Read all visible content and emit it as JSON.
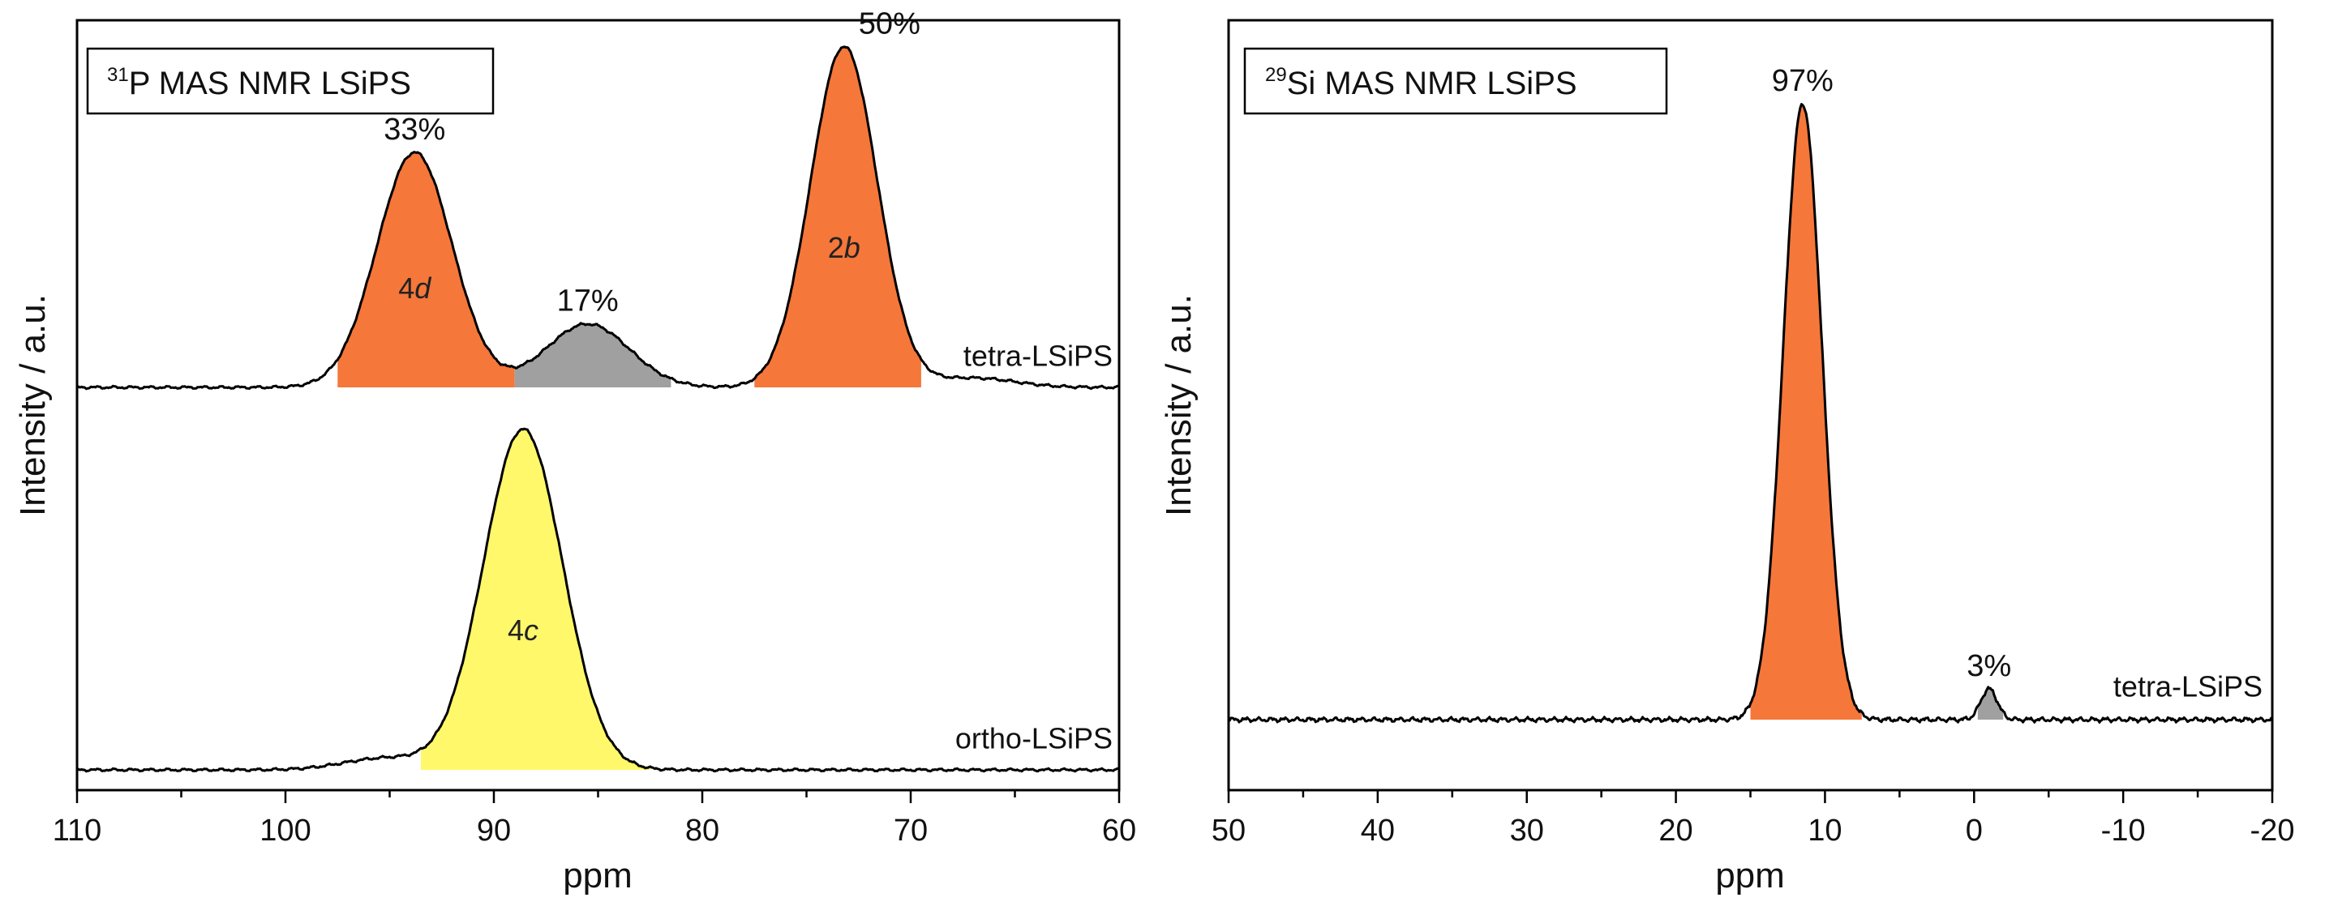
{
  "chart_data": [
    {
      "type": "line",
      "title_sup": "31",
      "title": "P MAS NMR LSiPS",
      "xlabel": "ppm",
      "ylabel": "Intensity / a.u.",
      "xlim": [
        110,
        60
      ],
      "x_reversed": true,
      "xticks": [
        110,
        100,
        90,
        80,
        70,
        60
      ],
      "tick_labels": [
        "110",
        "100",
        "90",
        "80",
        "70",
        "60"
      ],
      "series": [
        {
          "name": "tetra-LSiPS",
          "stack_level": "upper",
          "peaks": [
            {
              "center": 93.8,
              "height": 1.0,
              "width": 1.8,
              "fill": "#f5773a",
              "label": "4d",
              "label_num": "4",
              "label_it": "d",
              "percent": "33%",
              "fill_range": [
                97.5,
                89.0
              ]
            },
            {
              "center": 85.5,
              "height": 0.27,
              "width": 2.0,
              "fill": "#a0a0a0",
              "percent": "17%",
              "fill_range": [
                89.0,
                81.5
              ]
            },
            {
              "center": 73.2,
              "height": 1.45,
              "width": 1.6,
              "fill": "#f5773a",
              "label": "2b",
              "label_num": "2",
              "label_it": "b",
              "percent": "50%",
              "fill_range": [
                77.5,
                69.5
              ]
            },
            {
              "center": 67.0,
              "height": 0.04,
              "width": 2.0
            }
          ]
        },
        {
          "name": "ortho-LSiPS",
          "stack_level": "lower",
          "peaks": [
            {
              "center": 88.6,
              "height": 1.45,
              "width": 1.9,
              "fill": "#fff86a",
              "label": "4c",
              "label_num": "4",
              "label_it": "c",
              "fill_range": [
                93.5,
                82.5
              ]
            },
            {
              "center": 95.2,
              "height": 0.05,
              "width": 2.0
            }
          ]
        }
      ]
    },
    {
      "type": "line",
      "title_sup": "29",
      "title": "Si MAS NMR LSiPS",
      "xlabel": "ppm",
      "ylabel": "Intensity / a.u.",
      "xlim": [
        50,
        -20
      ],
      "x_reversed": true,
      "xticks": [
        50,
        40,
        30,
        20,
        10,
        0,
        -10,
        -20
      ],
      "tick_labels": [
        "50",
        "40",
        "30",
        "20",
        "10",
        "0",
        "-10",
        "-20"
      ],
      "series": [
        {
          "name": "tetra-LSiPS",
          "peaks": [
            {
              "center": 11.5,
              "height": 1.0,
              "width": 1.3,
              "fill": "#f5773a",
              "percent": "97%",
              "fill_range": [
                15.0,
                7.5
              ]
            },
            {
              "center": -1.0,
              "height": 0.05,
              "width": 0.55,
              "fill": "#a0a0a0",
              "percent": "3%",
              "fill_range": [
                -0.2,
                -2.0
              ]
            }
          ]
        }
      ]
    }
  ]
}
